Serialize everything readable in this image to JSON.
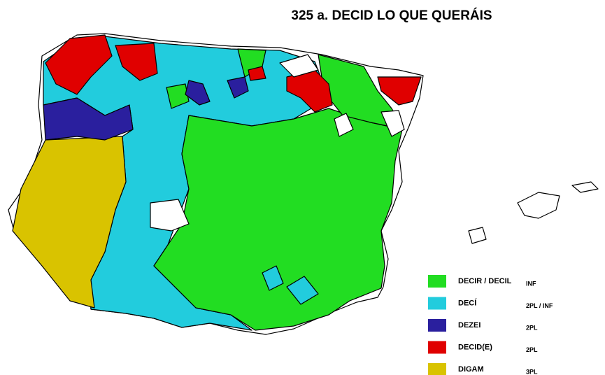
{
  "title": "325 a. DECID LO QUE QUERÁIS",
  "legend": [
    {
      "label": "DECIR / DECIL",
      "note": "INF",
      "color": "#22dd22"
    },
    {
      "label": "DECÍ",
      "note": "2PL / INF",
      "color": "#22ccdd"
    },
    {
      "label": "DEZEI",
      "note": "2PL",
      "color": "#2a1f9e"
    },
    {
      "label": "DECID(E)",
      "note": "2PL",
      "color": "#e00000"
    },
    {
      "label": "DIGAM",
      "note": "3PL",
      "color": "#d9c300"
    }
  ]
}
